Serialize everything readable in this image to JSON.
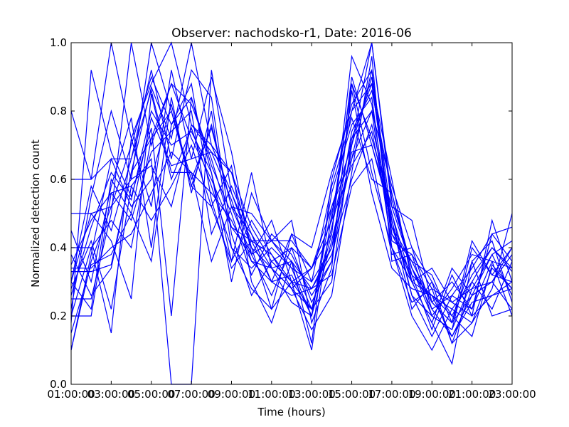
{
  "chart_data": {
    "type": "line",
    "title": "Observer: nachodsko-r1, Date: 2016-06",
    "xlabel": "Time (hours)",
    "ylabel": "Normalized detection count",
    "xlim": [
      1,
      23
    ],
    "ylim": [
      0,
      1
    ],
    "grid": false,
    "legend": "none",
    "x_ticks": [
      {
        "value": 1,
        "label": "01:00:00"
      },
      {
        "value": 3,
        "label": "03:00:00"
      },
      {
        "value": 5,
        "label": "05:00:00"
      },
      {
        "value": 7,
        "label": "07:00:00"
      },
      {
        "value": 9,
        "label": "09:00:00"
      },
      {
        "value": 11,
        "label": "11:00:00"
      },
      {
        "value": 13,
        "label": "13:00:00"
      },
      {
        "value": 15,
        "label": "15:00:00"
      },
      {
        "value": 17,
        "label": "17:00:00"
      },
      {
        "value": 19,
        "label": "19:00:00"
      },
      {
        "value": 21,
        "label": "21:00:00"
      },
      {
        "value": 23,
        "label": "23:00:00"
      }
    ],
    "y_ticks": [
      {
        "value": 0.0,
        "label": "0.0"
      },
      {
        "value": 0.2,
        "label": "0.2"
      },
      {
        "value": 0.4,
        "label": "0.4"
      },
      {
        "value": 0.6,
        "label": "0.6"
      },
      {
        "value": 0.8,
        "label": "0.8"
      },
      {
        "value": 1.0,
        "label": "1.0"
      }
    ],
    "x": [
      1,
      2,
      3,
      4,
      5,
      6,
      7,
      8,
      9,
      10,
      11,
      12,
      13,
      14,
      15,
      16,
      17,
      18,
      19,
      20,
      21,
      22,
      23
    ],
    "color": "#0000ff",
    "series": [
      {
        "values": [
          0.8,
          0.6,
          1.0,
          0.72,
          0.88,
          1.0,
          0.76,
          0.68,
          0.54,
          0.36,
          0.3,
          0.44,
          0.4,
          0.62,
          0.8,
          1.0,
          0.52,
          0.48,
          0.24,
          0.18,
          0.42,
          0.32,
          0.4
        ]
      },
      {
        "values": [
          0.25,
          0.25,
          0.5,
          1.0,
          0.7,
          0.88,
          0.72,
          0.6,
          0.46,
          0.42,
          0.38,
          0.28,
          0.22,
          0.46,
          0.72,
          0.8,
          0.58,
          0.4,
          0.3,
          0.12,
          0.18,
          0.28,
          0.5
        ]
      },
      {
        "values": [
          0.33,
          0.33,
          0.35,
          0.62,
          0.87,
          0.72,
          1.0,
          0.7,
          0.62,
          0.4,
          0.22,
          0.3,
          0.34,
          0.52,
          0.7,
          0.9,
          0.42,
          0.38,
          0.2,
          0.28,
          0.38,
          0.36,
          0.2
        ]
      },
      {
        "values": [
          0.18,
          0.92,
          0.68,
          0.55,
          0.75,
          0.2,
          0.84,
          0.62,
          0.3,
          0.56,
          0.42,
          0.48,
          0.18,
          0.34,
          0.88,
          0.62,
          0.4,
          0.2,
          0.1,
          0.22,
          0.3,
          0.4,
          0.33
        ]
      },
      {
        "values": [
          0.1,
          0.38,
          0.66,
          0.52,
          0.6,
          0.82,
          0.58,
          0.52,
          0.64,
          0.3,
          0.18,
          0.36,
          0.12,
          0.6,
          0.82,
          0.92,
          0.48,
          0.22,
          0.3,
          0.2,
          0.14,
          0.35,
          0.28
        ]
      },
      {
        "values": [
          0.3,
          0.5,
          0.42,
          0.25,
          0.85,
          0.6,
          0.75,
          0.58,
          0.4,
          0.28,
          0.22,
          0.44,
          0.3,
          0.4,
          0.74,
          0.86,
          0.56,
          0.32,
          0.16,
          0.32,
          0.2,
          0.48,
          0.3
        ]
      },
      {
        "values": [
          0.22,
          0.55,
          0.8,
          0.6,
          1.0,
          0.8,
          0.6,
          0.75,
          0.52,
          0.44,
          0.34,
          0.28,
          0.16,
          0.26,
          0.62,
          0.96,
          0.36,
          0.38,
          0.28,
          0.24,
          0.28,
          0.3,
          0.22
        ]
      },
      {
        "values": [
          0.4,
          0.4,
          0.15,
          0.72,
          0.52,
          0.92,
          0.66,
          0.9,
          0.68,
          0.38,
          0.48,
          0.3,
          0.1,
          0.5,
          0.8,
          0.88,
          0.6,
          0.3,
          0.18,
          0.06,
          0.36,
          0.2,
          0.22
        ]
      },
      {
        "values": [
          0.2,
          0.4,
          0.48,
          0.4,
          0.72,
          0.88,
          0.82,
          0.66,
          0.46,
          0.38,
          0.42,
          0.36,
          0.22,
          0.44,
          0.96,
          0.82,
          0.44,
          0.36,
          0.32,
          0.18,
          0.26,
          0.38,
          0.42
        ]
      },
      {
        "values": [
          0.15,
          0.35,
          0.38,
          0.5,
          0.36,
          0.76,
          0.84,
          0.64,
          0.5,
          0.32,
          0.44,
          0.38,
          0.26,
          0.36,
          0.7,
          1.0,
          0.54,
          0.34,
          0.24,
          0.3,
          0.22,
          0.44,
          0.36
        ]
      },
      {
        "values": [
          0.6,
          0.6,
          0.66,
          0.66,
          0.86,
          0.62,
          0.62,
          0.36,
          0.52,
          0.5,
          0.42,
          0.42,
          0.34,
          0.48,
          0.64,
          0.74,
          0.46,
          0.3,
          0.26,
          0.2,
          0.32,
          0.4,
          0.34
        ]
      },
      {
        "values": [
          0.35,
          0.48,
          0.56,
          0.48,
          0.68,
          0.74,
          0.8,
          0.44,
          0.58,
          0.44,
          0.3,
          0.26,
          0.28,
          0.32,
          0.58,
          0.66,
          0.38,
          0.4,
          0.22,
          0.14,
          0.24,
          0.26,
          0.3
        ]
      },
      {
        "values": [
          0.28,
          0.42,
          0.22,
          0.58,
          0.48,
          0.58,
          0.7,
          0.52,
          0.36,
          0.62,
          0.34,
          0.24,
          0.2,
          0.42,
          0.68,
          0.7,
          0.5,
          0.26,
          0.14,
          0.26,
          0.34,
          0.44,
          0.46
        ]
      },
      {
        "values": [
          0.45,
          0.3,
          0.58,
          0.78,
          0.4,
          0.84,
          0.56,
          0.8,
          0.4,
          0.34,
          0.4,
          0.34,
          0.3,
          0.58,
          0.78,
          0.6,
          0.56,
          0.34,
          0.2,
          0.16,
          0.3,
          0.22,
          0.36
        ]
      },
      {
        "values": [
          0.3,
          0.58,
          0.45,
          0.66,
          0.92,
          0.66,
          0.92,
          0.84,
          0.44,
          0.26,
          0.36,
          0.4,
          0.24,
          0.36,
          0.86,
          0.56,
          0.34,
          0.28,
          0.26,
          0.22,
          0.18,
          0.34,
          0.28
        ]
      },
      {
        "values": [
          0.5,
          0.5,
          0.52,
          0.6,
          0.64,
          0.52,
          0.76,
          0.7,
          0.56,
          0.42,
          0.3,
          0.32,
          0.2,
          0.52,
          0.66,
          0.8,
          0.4,
          0.24,
          0.28,
          0.12,
          0.28,
          0.38,
          0.26
        ]
      },
      {
        "values": [
          0.34,
          0.34,
          0.4,
          0.44,
          0.56,
          0.68,
          0.62,
          0.56,
          0.48,
          0.36,
          0.34,
          0.36,
          0.28,
          0.38,
          0.6,
          0.76,
          0.5,
          0.3,
          0.18,
          0.34,
          0.26,
          0.3,
          0.4
        ]
      },
      {
        "values": [
          0.26,
          0.46,
          0.62,
          0.54,
          0.8,
          0.7,
          0.74,
          0.62,
          0.36,
          0.48,
          0.38,
          0.3,
          0.22,
          0.3,
          0.72,
          0.88,
          0.46,
          0.36,
          0.24,
          0.18,
          0.36,
          0.42,
          0.24
        ]
      },
      {
        "values": [
          0.38,
          0.26,
          0.34,
          0.62,
          0.72,
          0.8,
          0.58,
          0.76,
          0.52,
          0.38,
          0.26,
          0.4,
          0.34,
          0.48,
          0.88,
          0.72,
          0.52,
          0.34,
          0.22,
          0.26,
          0.22,
          0.36,
          0.34
        ]
      },
      {
        "values": [
          0.2,
          0.2,
          0.56,
          0.58,
          0.66,
          0.0,
          0.0,
          0.92,
          0.56,
          0.4,
          0.34,
          0.28,
          0.34,
          0.44,
          0.9,
          0.7,
          0.48,
          0.26,
          0.2,
          0.16,
          0.4,
          0.32,
          0.3
        ]
      },
      {
        "values": [
          0.1,
          0.36,
          0.52,
          0.7,
          0.9,
          0.76,
          0.88,
          0.54,
          0.34,
          0.42,
          0.42,
          0.34,
          0.2,
          0.56,
          0.76,
          0.84,
          0.4,
          0.3,
          0.34,
          0.24,
          0.2,
          0.26,
          0.28
        ]
      },
      {
        "values": [
          0.3,
          0.22,
          0.6,
          0.5,
          0.78,
          0.64,
          0.66,
          0.68,
          0.62,
          0.46,
          0.36,
          0.3,
          0.28,
          0.4,
          0.66,
          0.92,
          0.44,
          0.32,
          0.26,
          0.14,
          0.26,
          0.3,
          0.38
        ]
      }
    ]
  }
}
